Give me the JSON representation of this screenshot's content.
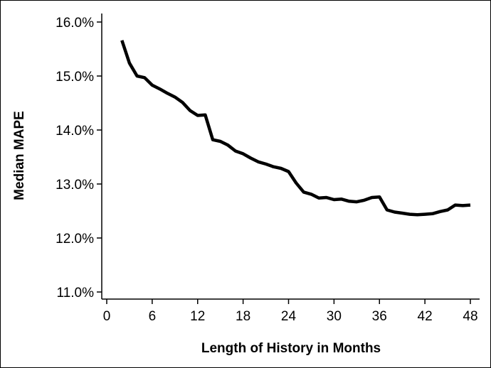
{
  "chart_data": {
    "type": "line",
    "title": "",
    "xlabel": "Length of History in Months",
    "ylabel": "Median MAPE",
    "xlim": [
      0,
      48
    ],
    "ylim": [
      0.11,
      0.16
    ],
    "x_ticks": [
      0,
      6,
      12,
      18,
      24,
      30,
      36,
      42,
      48
    ],
    "y_ticks": [
      {
        "value": 0.16,
        "label": "16.0%"
      },
      {
        "value": 0.15,
        "label": "15.0%"
      },
      {
        "value": 0.14,
        "label": "14.0%"
      },
      {
        "value": 0.13,
        "label": "13.0%"
      },
      {
        "value": 0.12,
        "label": "12.0%"
      },
      {
        "value": 0.11,
        "label": "11.0%"
      }
    ],
    "grid": false,
    "line_color": "#000000",
    "series": [
      {
        "x": [
          2,
          3,
          4,
          5,
          6,
          7,
          8,
          9,
          10,
          11,
          12,
          13,
          14,
          15,
          16,
          17,
          18,
          19,
          20,
          21,
          22,
          23,
          24,
          25,
          26,
          27,
          28,
          29,
          30,
          31,
          32,
          33,
          34,
          35,
          36,
          37,
          38,
          39,
          40,
          41,
          42,
          43,
          44,
          45,
          46,
          47,
          48
        ],
        "values": [
          0.1566,
          0.1524,
          0.15,
          0.1497,
          0.1483,
          0.1476,
          0.1468,
          0.1461,
          0.1451,
          0.1436,
          0.1427,
          0.1428,
          0.1382,
          0.1379,
          0.1372,
          0.1361,
          0.1356,
          0.1348,
          0.1341,
          0.1337,
          0.1332,
          0.1329,
          0.1323,
          0.1302,
          0.1285,
          0.1281,
          0.1274,
          0.1275,
          0.1271,
          0.1272,
          0.1268,
          0.1267,
          0.127,
          0.1275,
          0.1276,
          0.1252,
          0.1248,
          0.1246,
          0.1244,
          0.1243,
          0.1244,
          0.1245,
          0.1249,
          0.1252,
          0.1261,
          0.126,
          0.1261
        ]
      }
    ]
  }
}
